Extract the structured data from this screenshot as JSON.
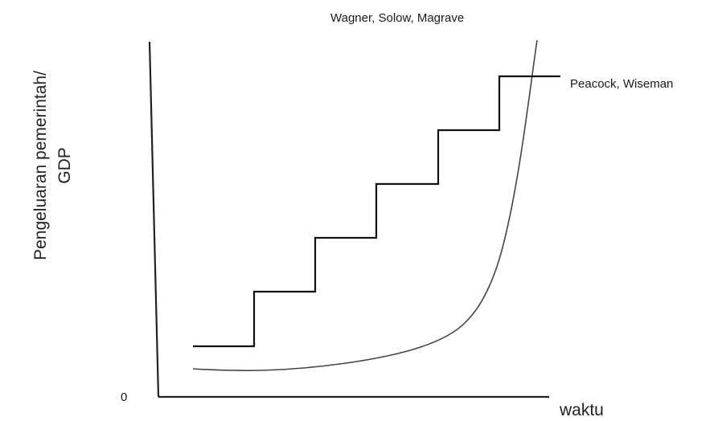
{
  "diagram": {
    "y_axis_label_line1": "Pengeluaran pemerintah/",
    "y_axis_label_line2": "GDP",
    "x_axis_label": "waktu",
    "origin_label": "0",
    "curve_label": "Wagner, Solow, Magrave",
    "step_label": "Peacock, Wiseman",
    "line_color": "#111111",
    "curve_color": "#444444"
  }
}
